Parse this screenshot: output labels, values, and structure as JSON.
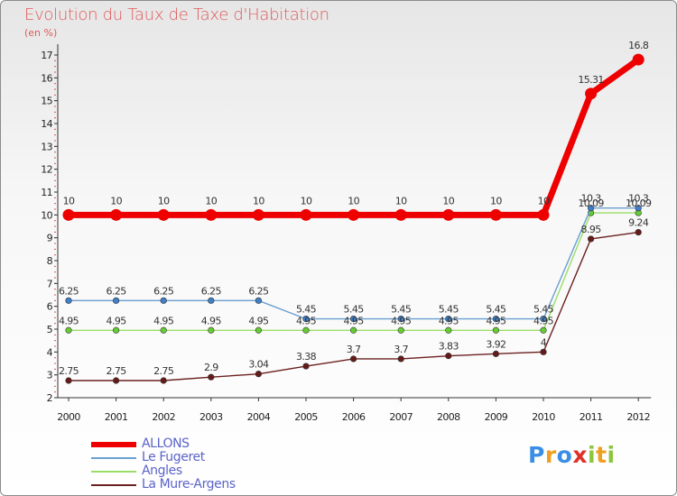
{
  "chart_data": {
    "type": "line",
    "title": "Evolution du Taux de Taxe d'Habitation",
    "ylabel": "(en %)",
    "xlabel": "",
    "x": [
      "2000",
      "2001",
      "2002",
      "2003",
      "2004",
      "2005",
      "2006",
      "2007",
      "2008",
      "2009",
      "2010",
      "2011",
      "2012"
    ],
    "ylim": [
      2,
      17
    ],
    "yticks": [
      "2",
      "3",
      "4",
      "5",
      "6",
      "7",
      "8",
      "9",
      "10",
      "11",
      "12",
      "13",
      "14",
      "15",
      "16",
      "17"
    ],
    "grid": false,
    "legend_position": "bottom-left",
    "series": [
      {
        "name": "ALLONS",
        "color": "#ee0000",
        "values": [
          10,
          10,
          10,
          10,
          10,
          10,
          10,
          10,
          10,
          10,
          10,
          15.31,
          16.8
        ],
        "labels": [
          "10",
          "10",
          "10",
          "10",
          "10",
          "10",
          "10",
          "10",
          "10",
          "10",
          "10",
          "15.31",
          "16.8"
        ]
      },
      {
        "name": "Le Fugeret",
        "color": "#6a9fd0",
        "marker_color": "#3f7fc8",
        "values": [
          6.25,
          6.25,
          6.25,
          6.25,
          6.25,
          5.45,
          5.45,
          5.45,
          5.45,
          5.45,
          5.45,
          10.3,
          10.3
        ],
        "labels": [
          "6.25",
          "6.25",
          "6.25",
          "6.25",
          "6.25",
          "5.45",
          "5.45",
          "5.45",
          "5.45",
          "5.45",
          "5.45",
          "10.3",
          "10.3"
        ]
      },
      {
        "name": "Angles",
        "color": "#99dd66",
        "marker_color": "#66cc33",
        "values": [
          4.95,
          4.95,
          4.95,
          4.95,
          4.95,
          4.95,
          4.95,
          4.95,
          4.95,
          4.95,
          4.95,
          10.09,
          10.09
        ],
        "labels": [
          "4.95",
          "4.95",
          "4.95",
          "4.95",
          "4.95",
          "4.95",
          "4.95",
          "4.95",
          "4.95",
          "4.95",
          "4.95",
          "10.09",
          "10.09"
        ]
      },
      {
        "name": "La Mure-Argens",
        "color": "#6b2020",
        "marker_color": "#661a1a",
        "values": [
          2.75,
          2.75,
          2.75,
          2.9,
          3.04,
          3.38,
          3.7,
          3.7,
          3.83,
          3.92,
          4,
          8.95,
          9.24
        ],
        "labels": [
          "2.75",
          "2.75",
          "2.75",
          "2.9",
          "3.04",
          "3.38",
          "3.7",
          "3.7",
          "3.83",
          "3.92",
          "4",
          "8.95",
          "9.24"
        ]
      }
    ]
  },
  "logo": {
    "letters": [
      "P",
      "r",
      "o",
      "x",
      "i",
      "t",
      "i"
    ],
    "colors": [
      "#3a8ee6",
      "#f0a020",
      "#3a8ee6",
      "#e0302a",
      "#8cc63e",
      "#f0a020",
      "#8cc63e"
    ]
  }
}
